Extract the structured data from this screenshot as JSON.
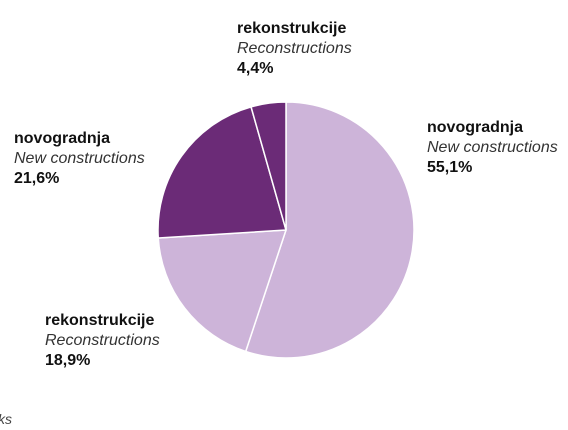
{
  "chart_data": {
    "type": "pie",
    "slices": [
      {
        "label": "novogradnja",
        "sublabel": "New constructions",
        "value": 55.1,
        "value_text": "55,1%",
        "color": "#cdb4d9"
      },
      {
        "label": "rekonstrukcije",
        "sublabel": "Reconstructions",
        "value": 18.9,
        "value_text": "18,9%",
        "color": "#cdb4d9"
      },
      {
        "label": "novogradnja",
        "sublabel": "New constructions",
        "value": 21.6,
        "value_text": "21,6%",
        "color": "#6b2b77"
      },
      {
        "label": "rekonstrukcije",
        "sublabel": "Reconstructions",
        "value": 4.4,
        "value_text": "4,4%",
        "color": "#6b2b77"
      }
    ]
  },
  "footnote": "ks"
}
